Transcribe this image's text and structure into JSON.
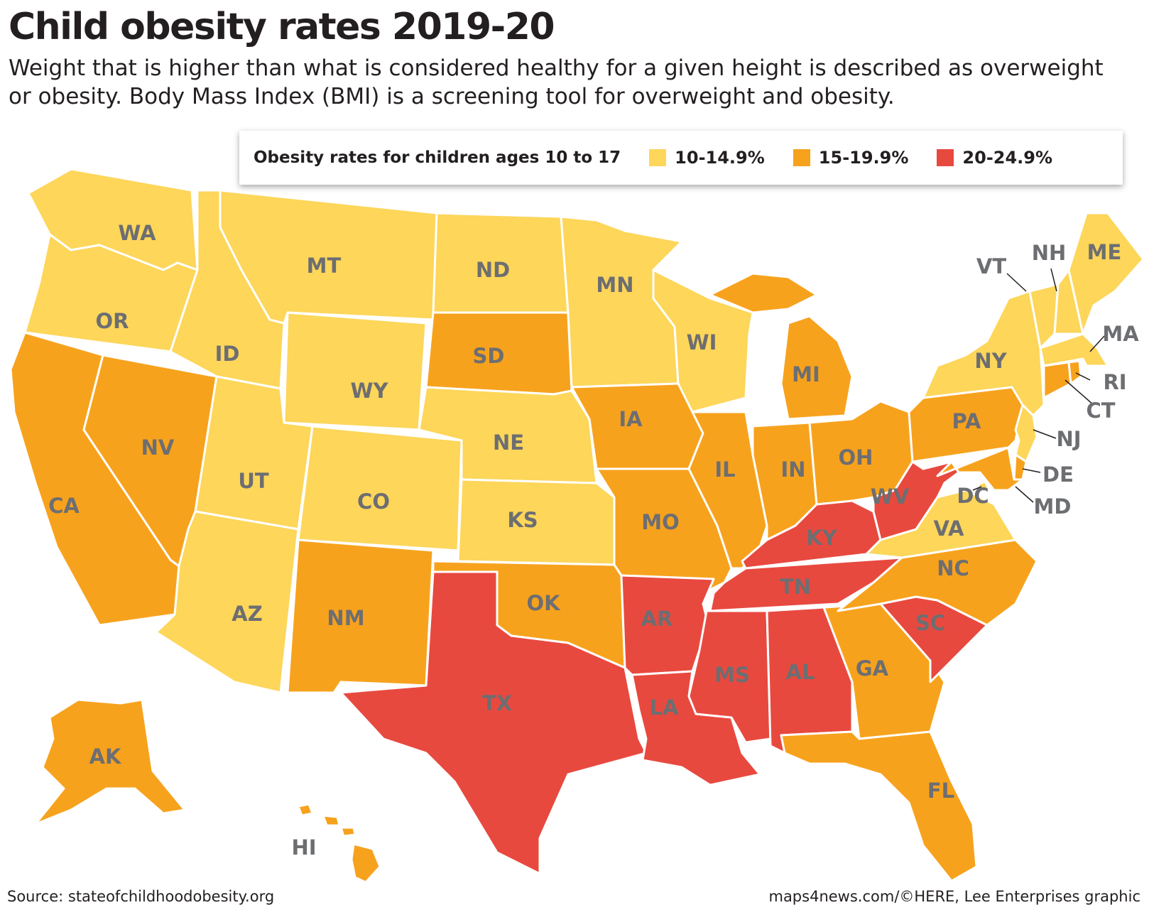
{
  "title": "Child obesity rates 2019-20",
  "subtitle": "Weight that is higher than what is considered healthy for a given height is described as overweight or obesity. Body Mass Index (BMI) is a screening tool for overweight and obesity.",
  "legend": {
    "title": "Obesity rates for children ages 10 to 17",
    "items": [
      {
        "label": "10-14.9%",
        "color": "#fdd65a"
      },
      {
        "label": "15-19.9%",
        "color": "#f7a21d"
      },
      {
        "label": "20-24.9%",
        "color": "#e8493f"
      }
    ]
  },
  "states": {
    "WA": "10-14.9%",
    "OR": "10-14.9%",
    "CA": "15-19.9%",
    "NV": "15-19.9%",
    "ID": "10-14.9%",
    "MT": "10-14.9%",
    "WY": "10-14.9%",
    "UT": "10-14.9%",
    "AZ": "10-14.9%",
    "CO": "10-14.9%",
    "NM": "15-19.9%",
    "ND": "10-14.9%",
    "SD": "15-19.9%",
    "NE": "10-14.9%",
    "KS": "10-14.9%",
    "OK": "15-19.9%",
    "TX": "20-24.9%",
    "MN": "10-14.9%",
    "IA": "15-19.9%",
    "MO": "15-19.9%",
    "AR": "20-24.9%",
    "LA": "20-24.9%",
    "WI": "10-14.9%",
    "IL": "15-19.9%",
    "MI": "15-19.9%",
    "IN": "15-19.9%",
    "OH": "15-19.9%",
    "KY": "20-24.9%",
    "TN": "20-24.9%",
    "MS": "20-24.9%",
    "AL": "20-24.9%",
    "GA": "15-19.9%",
    "FL": "15-19.9%",
    "SC": "20-24.9%",
    "NC": "15-19.9%",
    "VA": "10-14.9%",
    "WV": "20-24.9%",
    "PA": "15-19.9%",
    "NY": "10-14.9%",
    "VT": "10-14.9%",
    "NH": "10-14.9%",
    "ME": "10-14.9%",
    "MA": "10-14.9%",
    "RI": "15-19.9%",
    "CT": "15-19.9%",
    "NJ": "10-14.9%",
    "DE": "15-19.9%",
    "MD": "15-19.9%",
    "DC": "10-14.9%",
    "AK": "15-19.9%",
    "HI": "15-19.9%"
  },
  "labels": {
    "WA": "WA",
    "OR": "OR",
    "CA": "CA",
    "NV": "NV",
    "ID": "ID",
    "MT": "MT",
    "WY": "WY",
    "UT": "UT",
    "AZ": "AZ",
    "CO": "CO",
    "NM": "NM",
    "ND": "ND",
    "SD": "SD",
    "NE": "NE",
    "KS": "KS",
    "OK": "OK",
    "TX": "TX",
    "MN": "MN",
    "IA": "IA",
    "MO": "MO",
    "AR": "AR",
    "LA": "LA",
    "WI": "WI",
    "IL": "IL",
    "MI": "MI",
    "IN": "IN",
    "OH": "OH",
    "KY": "KY",
    "TN": "TN",
    "MS": "MS",
    "AL": "AL",
    "GA": "GA",
    "FL": "FL",
    "SC": "SC",
    "NC": "NC",
    "VA": "VA",
    "WV": "WV",
    "PA": "PA",
    "NY": "NY",
    "VT": "VT",
    "NH": "NH",
    "ME": "ME",
    "MA": "MA",
    "RI": "RI",
    "CT": "CT",
    "NJ": "NJ",
    "DE": "DE",
    "MD": "MD",
    "DC": "DC",
    "AK": "AK",
    "HI": "HI"
  },
  "source": "Source: stateofchildhoodobesity.org",
  "credit": "maps4news.com/©HERE, Lee Enterprises graphic"
}
